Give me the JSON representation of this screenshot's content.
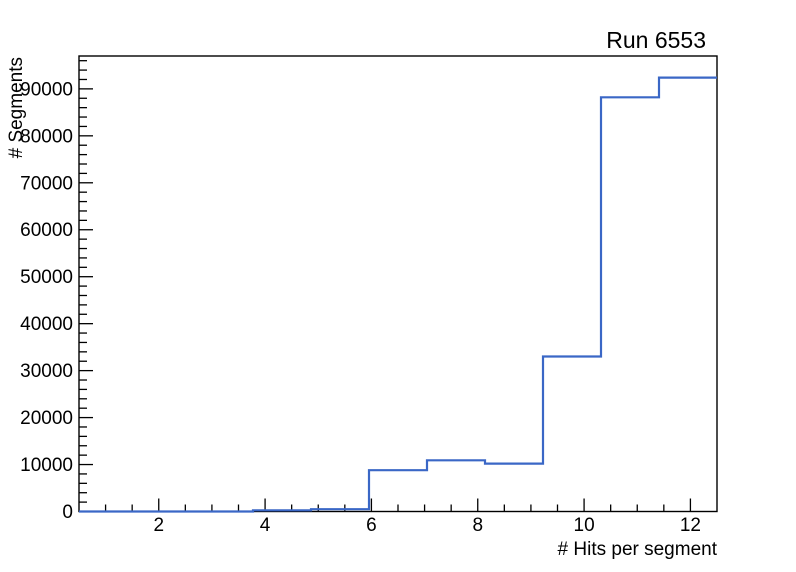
{
  "window": {
    "background": "#ffffff"
  },
  "colors": {
    "hist_line": "#3A67C6",
    "axis_line": "#000000",
    "text": "#000000"
  },
  "chart_data": {
    "type": "histogram-step",
    "title": "Run 6553",
    "xlabel": "# Hits per segment",
    "ylabel": "# Segments",
    "xlim": [
      0.5,
      12.5
    ],
    "ylim": [
      0,
      97000
    ],
    "grid": false,
    "legend": "none",
    "bin_edges": [
      0.5,
      1.591,
      2.682,
      3.773,
      4.864,
      5.955,
      7.045,
      8.136,
      9.227,
      10.318,
      11.409,
      12.5
    ],
    "counts": [
      0,
      0,
      0,
      250,
      500,
      8800,
      10900,
      10200,
      33000,
      88200,
      92400
    ],
    "x_major_ticks": [
      2,
      4,
      6,
      8,
      10,
      12
    ],
    "x_tick_labels": [
      "2",
      "4",
      "6",
      "8",
      "10",
      "12"
    ],
    "x_minor_tick_step": 0.5,
    "y_major_ticks": [
      0,
      10000,
      20000,
      30000,
      40000,
      50000,
      60000,
      70000,
      80000,
      90000
    ],
    "y_tick_labels": [
      "0",
      "10000",
      "20000",
      "30000",
      "40000",
      "50000",
      "60000",
      "70000",
      "80000",
      "90000"
    ],
    "y_minor_tick_step": 2000,
    "tick_style": "inward",
    "axes_shown": [
      "left",
      "bottom"
    ]
  }
}
